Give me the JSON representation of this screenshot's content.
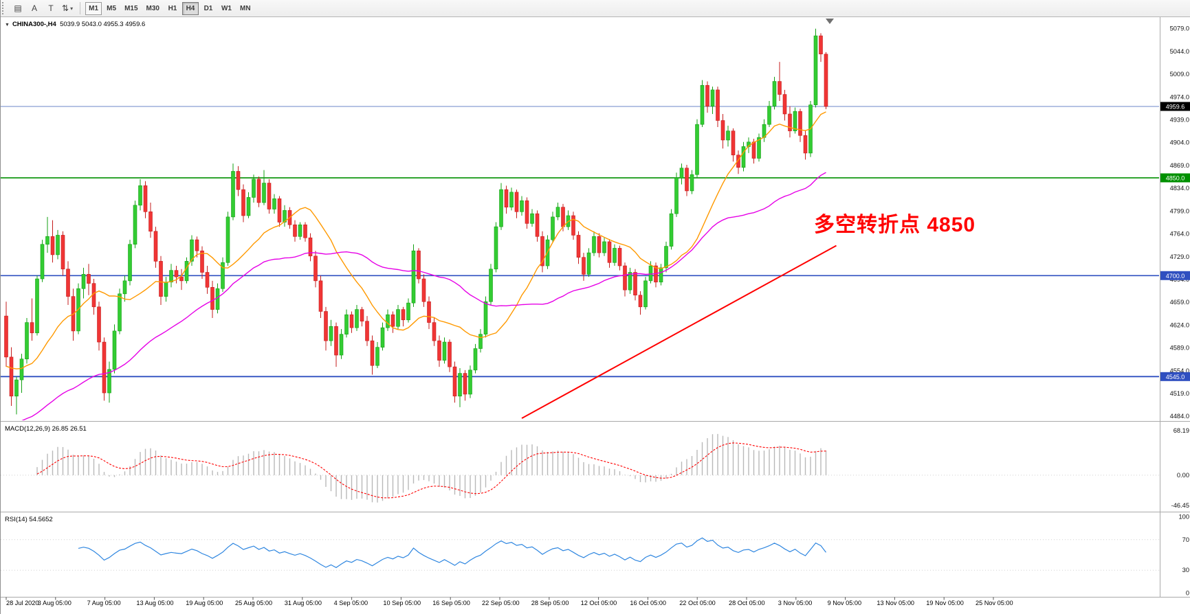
{
  "toolbar": {
    "icons": [
      {
        "name": "new-chart-icon",
        "glyph": "▤",
        "caret": false
      },
      {
        "name": "text-label-icon",
        "glyph": "A",
        "caret": false
      },
      {
        "name": "text-tool-icon",
        "glyph": "T",
        "caret": false
      },
      {
        "name": "scale-mode-icon",
        "glyph": "⇅",
        "caret": true
      }
    ],
    "timeframes": [
      "M1",
      "M5",
      "M15",
      "M30",
      "H1",
      "H4",
      "D1",
      "W1",
      "MN"
    ],
    "active_timeframe": "H4",
    "outlined_timeframe": "M1"
  },
  "chart_header": {
    "collapse_icon": "▼",
    "symbol": "CHINA300-,H4",
    "open": "5039.9",
    "high": "5043.0",
    "low": "4955.3",
    "close": "4959.6"
  },
  "chart_data": {
    "type": "candlestick",
    "symbol": "CHINA300-",
    "timeframe": "H4",
    "last_bar_ohlc": {
      "open": 5039.9,
      "high": 5043.0,
      "low": 4955.3,
      "close": 4959.6
    },
    "current_price": "4959.6",
    "y_ticks": [
      "5079.0",
      "5044.0",
      "5009.0",
      "4974.0",
      "4939.0",
      "4904.0",
      "4869.0",
      "4834.0",
      "4799.0",
      "4764.0",
      "4729.0",
      "4694.0",
      "4659.0",
      "4624.0",
      "4589.0",
      "4554.0",
      "4519.0",
      "4484.0"
    ],
    "time_labels": [
      "28 Jul 2020",
      "3 Aug 05:00",
      "7 Aug 05:00",
      "13 Aug 05:00",
      "19 Aug 05:00",
      "25 Aug 05:00",
      "31 Aug 05:00",
      "4 Sep 05:00",
      "10 Sep 05:00",
      "16 Sep 05:00",
      "22 Sep 05:00",
      "28 Sep 05:00",
      "12 Oct 05:00",
      "16 Oct 05:00",
      "22 Oct 05:00",
      "28 Oct 05:00",
      "3 Nov 05:00",
      "9 Nov 05:00",
      "13 Nov 05:00",
      "19 Nov 05:00",
      "25 Nov 05:00"
    ],
    "horizontal_lines": [
      {
        "name": "current-price-line",
        "price": 4959.6,
        "color": "#6b86c8",
        "width": 1,
        "badge": "4959.6",
        "badge_color": "#000000"
      },
      {
        "name": "level-line-4850",
        "price": 4850.0,
        "color": "#009000",
        "width": 1.6,
        "badge": "4850.0",
        "badge_color": "#009000"
      },
      {
        "name": "level-line-4700",
        "price": 4700.0,
        "color": "#2f4fc0",
        "width": 1.6,
        "badge": "4700.0",
        "badge_color": "#2f4fc0"
      },
      {
        "name": "level-line-4545",
        "price": 4545.0,
        "color": "#2f4fc0",
        "width": 1.8,
        "badge": "4545.0",
        "badge_color": "#2f4fc0"
      }
    ],
    "trendline": {
      "from_bar": 100,
      "from_price": 4481,
      "to_bar": 161,
      "to_price": 4746,
      "color": "#ff0000",
      "width": 2
    },
    "moving_averages": [
      {
        "name": "fast-ma",
        "period": 16,
        "seed": 4560,
        "color": "#ff9900"
      },
      {
        "name": "slow-ma",
        "period": 45,
        "seed": 4470,
        "color": "#e600e6"
      }
    ],
    "annotation": {
      "text": "多空转折点 4850",
      "color": "#ff0000"
    },
    "candle_up_color": "#33cc33",
    "candle_down_color": "#f03535",
    "candles": [
      [
        4638,
        4660,
        4560,
        4575
      ],
      [
        4575,
        4590,
        4500,
        4515
      ],
      [
        4515,
        4545,
        4487,
        4540
      ],
      [
        4540,
        4580,
        4520,
        4572
      ],
      [
        4572,
        4635,
        4565,
        4628
      ],
      [
        4628,
        4665,
        4600,
        4612
      ],
      [
        4612,
        4700,
        4608,
        4695
      ],
      [
        4695,
        4755,
        4690,
        4748
      ],
      [
        4748,
        4790,
        4735,
        4760
      ],
      [
        4760,
        4785,
        4720,
        4732
      ],
      [
        4732,
        4770,
        4725,
        4762
      ],
      [
        4762,
        4768,
        4700,
        4710
      ],
      [
        4710,
        4722,
        4655,
        4668
      ],
      [
        4668,
        4680,
        4600,
        4615
      ],
      [
        4615,
        4688,
        4610,
        4680
      ],
      [
        4680,
        4712,
        4665,
        4702
      ],
      [
        4702,
        4718,
        4670,
        4688
      ],
      [
        4688,
        4695,
        4640,
        4652
      ],
      [
        4652,
        4660,
        4585,
        4598
      ],
      [
        4598,
        4605,
        4508,
        4520
      ],
      [
        4520,
        4568,
        4505,
        4556
      ],
      [
        4556,
        4625,
        4550,
        4615
      ],
      [
        4615,
        4680,
        4610,
        4672
      ],
      [
        4672,
        4700,
        4660,
        4692
      ],
      [
        4692,
        4755,
        4685,
        4748
      ],
      [
        4748,
        4815,
        4742,
        4808
      ],
      [
        4808,
        4848,
        4800,
        4838
      ],
      [
        4838,
        4845,
        4788,
        4798
      ],
      [
        4798,
        4812,
        4758,
        4768
      ],
      [
        4768,
        4775,
        4712,
        4722
      ],
      [
        4722,
        4730,
        4655,
        4668
      ],
      [
        4668,
        4698,
        4660,
        4690
      ],
      [
        4690,
        4718,
        4682,
        4708
      ],
      [
        4708,
        4715,
        4688,
        4698
      ],
      [
        4698,
        4710,
        4678,
        4692
      ],
      [
        4692,
        4728,
        4688,
        4722
      ],
      [
        4722,
        4762,
        4715,
        4755
      ],
      [
        4755,
        4760,
        4728,
        4738
      ],
      [
        4738,
        4745,
        4695,
        4705
      ],
      [
        4705,
        4715,
        4672,
        4682
      ],
      [
        4682,
        4692,
        4635,
        4648
      ],
      [
        4648,
        4688,
        4642,
        4680
      ],
      [
        4680,
        4728,
        4675,
        4720
      ],
      [
        4720,
        4798,
        4715,
        4790
      ],
      [
        4790,
        4872,
        4785,
        4860
      ],
      [
        4860,
        4868,
        4822,
        4832
      ],
      [
        4832,
        4840,
        4782,
        4792
      ],
      [
        4792,
        4828,
        4788,
        4820
      ],
      [
        4820,
        4855,
        4812,
        4848
      ],
      [
        4848,
        4852,
        4805,
        4812
      ],
      [
        4812,
        4862,
        4808,
        4842
      ],
      [
        4842,
        4848,
        4795,
        4802
      ],
      [
        4802,
        4825,
        4795,
        4818
      ],
      [
        4818,
        4822,
        4775,
        4782
      ],
      [
        4782,
        4808,
        4775,
        4800
      ],
      [
        4800,
        4805,
        4772,
        4778
      ],
      [
        4778,
        4785,
        4752,
        4760
      ],
      [
        4760,
        4782,
        4755,
        4778
      ],
      [
        4778,
        4782,
        4752,
        4758
      ],
      [
        4758,
        4765,
        4722,
        4730
      ],
      [
        4730,
        4738,
        4682,
        4692
      ],
      [
        4692,
        4700,
        4635,
        4645
      ],
      [
        4645,
        4652,
        4585,
        4600
      ],
      [
        4600,
        4632,
        4592,
        4622
      ],
      [
        4622,
        4628,
        4560,
        4578
      ],
      [
        4578,
        4618,
        4572,
        4610
      ],
      [
        4610,
        4648,
        4605,
        4640
      ],
      [
        4640,
        4645,
        4612,
        4620
      ],
      [
        4620,
        4655,
        4615,
        4648
      ],
      [
        4648,
        4652,
        4622,
        4630
      ],
      [
        4630,
        4638,
        4592,
        4600
      ],
      [
        4600,
        4608,
        4548,
        4562
      ],
      [
        4562,
        4598,
        4558,
        4590
      ],
      [
        4590,
        4628,
        4585,
        4620
      ],
      [
        4620,
        4648,
        4615,
        4640
      ],
      [
        4640,
        4645,
        4612,
        4622
      ],
      [
        4622,
        4655,
        4618,
        4648
      ],
      [
        4648,
        4652,
        4622,
        4632
      ],
      [
        4632,
        4665,
        4628,
        4658
      ],
      [
        4658,
        4748,
        4652,
        4738
      ],
      [
        4738,
        4742,
        4688,
        4695
      ],
      [
        4695,
        4702,
        4652,
        4660
      ],
      [
        4660,
        4668,
        4618,
        4628
      ],
      [
        4628,
        4635,
        4592,
        4600
      ],
      [
        4600,
        4608,
        4560,
        4570
      ],
      [
        4570,
        4605,
        4565,
        4598
      ],
      [
        4598,
        4602,
        4552,
        4560
      ],
      [
        4560,
        4568,
        4505,
        4515
      ],
      [
        4515,
        4558,
        4498,
        4550
      ],
      [
        4550,
        4555,
        4508,
        4518
      ],
      [
        4518,
        4562,
        4512,
        4555
      ],
      [
        4555,
        4595,
        4550,
        4588
      ],
      [
        4588,
        4618,
        4582,
        4610
      ],
      [
        4610,
        4668,
        4605,
        4660
      ],
      [
        4660,
        4718,
        4655,
        4710
      ],
      [
        4710,
        4782,
        4705,
        4775
      ],
      [
        4775,
        4842,
        4770,
        4832
      ],
      [
        4832,
        4838,
        4795,
        4805
      ],
      [
        4805,
        4835,
        4800,
        4828
      ],
      [
        4828,
        4832,
        4788,
        4798
      ],
      [
        4798,
        4822,
        4792,
        4815
      ],
      [
        4815,
        4820,
        4772,
        4780
      ],
      [
        4780,
        4802,
        4775,
        4795
      ],
      [
        4795,
        4800,
        4752,
        4760
      ],
      [
        4760,
        4768,
        4705,
        4715
      ],
      [
        4715,
        4762,
        4710,
        4755
      ],
      [
        4755,
        4798,
        4750,
        4790
      ],
      [
        4790,
        4812,
        4785,
        4805
      ],
      [
        4805,
        4810,
        4768,
        4775
      ],
      [
        4775,
        4800,
        4770,
        4792
      ],
      [
        4792,
        4798,
        4755,
        4762
      ],
      [
        4762,
        4768,
        4718,
        4728
      ],
      [
        4728,
        4735,
        4692,
        4702
      ],
      [
        4702,
        4742,
        4698,
        4735
      ],
      [
        4735,
        4768,
        4730,
        4760
      ],
      [
        4760,
        4765,
        4728,
        4735
      ],
      [
        4735,
        4758,
        4730,
        4752
      ],
      [
        4752,
        4756,
        4712,
        4720
      ],
      [
        4720,
        4748,
        4715,
        4742
      ],
      [
        4742,
        4746,
        4708,
        4715
      ],
      [
        4715,
        4720,
        4668,
        4678
      ],
      [
        4678,
        4712,
        4672,
        4705
      ],
      [
        4705,
        4710,
        4662,
        4670
      ],
      [
        4670,
        4676,
        4640,
        4652
      ],
      [
        4652,
        4698,
        4648,
        4692
      ],
      [
        4692,
        4722,
        4688,
        4715
      ],
      [
        4715,
        4720,
        4682,
        4690
      ],
      [
        4690,
        4718,
        4685,
        4712
      ],
      [
        4712,
        4752,
        4705,
        4745
      ],
      [
        4745,
        4802,
        4740,
        4795
      ],
      [
        4795,
        4858,
        4790,
        4850
      ],
      [
        4850,
        4872,
        4840,
        4865
      ],
      [
        4865,
        4870,
        4822,
        4830
      ],
      [
        4830,
        4862,
        4825,
        4855
      ],
      [
        4855,
        4940,
        4850,
        4932
      ],
      [
        4932,
        5000,
        4928,
        4992
      ],
      [
        4992,
        4998,
        4950,
        4960
      ],
      [
        4960,
        4990,
        4948,
        4985
      ],
      [
        4985,
        4990,
        4928,
        4938
      ],
      [
        4938,
        4948,
        4895,
        4908
      ],
      [
        4908,
        4930,
        4898,
        4922
      ],
      [
        4922,
        4926,
        4875,
        4885
      ],
      [
        4885,
        4892,
        4856,
        4866
      ],
      [
        4866,
        4905,
        4860,
        4898
      ],
      [
        4898,
        4912,
        4888,
        4905
      ],
      [
        4905,
        4910,
        4872,
        4880
      ],
      [
        4880,
        4918,
        4875,
        4912
      ],
      [
        4912,
        4940,
        4905,
        4932
      ],
      [
        4932,
        4968,
        4928,
        4960
      ],
      [
        4960,
        5005,
        4955,
        4998
      ],
      [
        4998,
        5028,
        4968,
        4978
      ],
      [
        4978,
        4985,
        4938,
        4948
      ],
      [
        4948,
        4960,
        4912,
        4922
      ],
      [
        4922,
        4958,
        4918,
        4952
      ],
      [
        4952,
        4956,
        4905,
        4915
      ],
      [
        4915,
        4922,
        4878,
        4888
      ],
      [
        4888,
        4968,
        4882,
        4962
      ],
      [
        4962,
        5079,
        4958,
        5068
      ],
      [
        5068,
        5072,
        5028,
        5040
      ],
      [
        5039.9,
        5043.0,
        4955.3,
        4959.6
      ]
    ],
    "macd": {
      "label": "MACD(12,26,9)",
      "value_main": "26.85",
      "value_signal": "26.51",
      "fast": 12,
      "slow": 26,
      "signal": 9,
      "axis_ticks": [
        "68.19",
        "0.00",
        "-46.45"
      ],
      "axis_values": [
        68.19,
        0,
        -46.45
      ],
      "range": [
        -55,
        80
      ],
      "histogram_color": "#b8b8b8",
      "signal_color": "#ff0000"
    },
    "rsi": {
      "label": "RSI(14)",
      "value": "54.5652",
      "period": 14,
      "axis_ticks": [
        "100",
        "70",
        "30",
        "0"
      ],
      "axis_values": [
        100,
        70,
        30,
        0
      ],
      "levels": [
        70,
        30
      ],
      "range": [
        0,
        100
      ],
      "color": "#2e86e0"
    }
  }
}
